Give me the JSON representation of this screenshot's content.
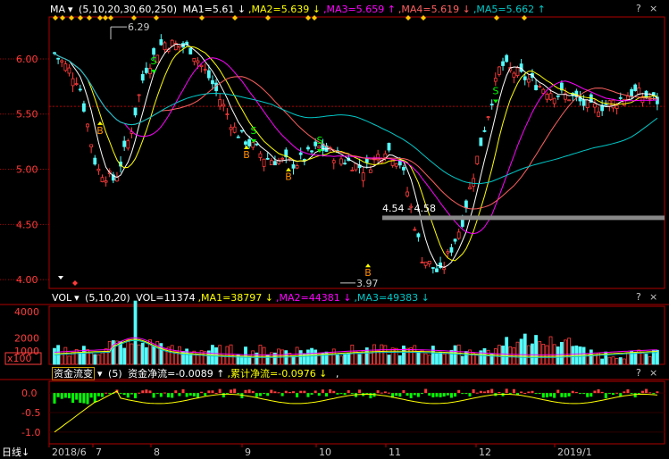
{
  "colors": {
    "up": "#ff3c3c",
    "down": "#54fcfc",
    "ma1": "#ffffff",
    "ma2": "#ffff00",
    "ma3": "#ff00ff",
    "ma4": "#ff6060",
    "ma5": "#00c8c8",
    "axis": "#b00000",
    "buy": "#ff8c00",
    "sell": "#00ff00"
  },
  "price_header": {
    "name": "MA",
    "params": "(5,10,20,30,60,250)",
    "items": [
      {
        "label": "MA1=5.61",
        "arrow": "↓",
        "color": "#ffffff"
      },
      {
        "label": "MA2=5.639",
        "arrow": "↓",
        "color": "#ffff00"
      },
      {
        "label": "MA3=5.659",
        "arrow": "↑",
        "color": "#ff00ff"
      },
      {
        "label": "MA4=5.619",
        "arrow": "↓",
        "color": "#ff6060"
      },
      {
        "label": "MA5=5.662",
        "arrow": "↑",
        "color": "#00c8c8"
      }
    ]
  },
  "vol_header": {
    "name": "VOL",
    "params": "(5,10,20)",
    "items": [
      {
        "label": "VOL=11374",
        "arrow": "",
        "color": "#ffffff"
      },
      {
        "label": "MA1=38797",
        "arrow": "↓",
        "color": "#ffff00"
      },
      {
        "label": "MA2=44381",
        "arrow": "↓",
        "color": "#ff00ff"
      },
      {
        "label": "MA3=49383",
        "arrow": "↓",
        "color": "#00c8c8"
      }
    ]
  },
  "flow_header": {
    "name": "资金流变",
    "params": "(5)",
    "items": [
      {
        "label": "资金净流=-0.0089",
        "arrow": "↑",
        "color": "#ffffff"
      },
      {
        "label": "累计净流=-0.0976",
        "arrow": "↓",
        "color": "#ffff00"
      }
    ],
    "tail": ","
  },
  "period_label": "日线",
  "period_arrow": "↓",
  "question_mark": "?",
  "chart_data": [
    {
      "type": "candlestick",
      "name": "price",
      "y_ticks": [
        "6.00",
        "5.50",
        "5.00",
        "4.50",
        "4.00"
      ],
      "ylim": [
        3.92,
        6.38
      ],
      "annotations": {
        "high": "6.29",
        "low": "3.97",
        "range": "4.54 - 4.58"
      },
      "signals": [
        {
          "type": "buy",
          "label": "B",
          "price": 5.37
        },
        {
          "type": "buy",
          "label": "B",
          "price": 5.15
        },
        {
          "type": "buy",
          "label": "B",
          "price": 4.95
        },
        {
          "type": "buy",
          "label": "B",
          "price": 4.08
        },
        {
          "type": "sell",
          "label": "S",
          "price": 5.95
        },
        {
          "type": "sell",
          "label": "S",
          "price": 5.32
        },
        {
          "type": "sell",
          "label": "S",
          "price": 5.23
        },
        {
          "type": "sell",
          "label": "S",
          "price": 5.68
        }
      ],
      "x_ticks": [
        "2018/6",
        "7",
        "8",
        "9",
        "10",
        "11",
        "12",
        "2019/1"
      ]
    },
    {
      "type": "bar",
      "name": "volume",
      "y_ticks": [
        "4000",
        "2000",
        "1000"
      ],
      "unit": "x100",
      "ylim": [
        0,
        4400
      ]
    },
    {
      "type": "bar",
      "name": "money_flow",
      "y_ticks": [
        "0.0",
        "-0.5",
        "-1.0"
      ],
      "ylim": [
        -1.3,
        0.3
      ]
    }
  ]
}
